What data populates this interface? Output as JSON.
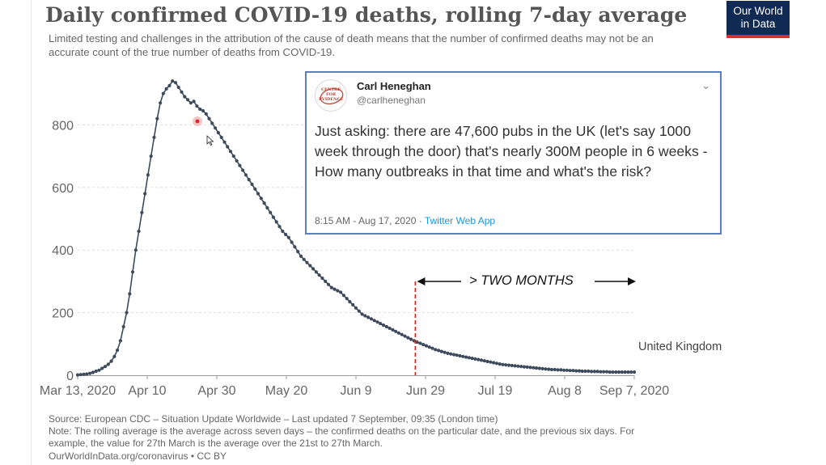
{
  "title": "Daily confirmed COVID-19 deaths, rolling 7-day average",
  "subtitle": "Limited testing and challenges in the attribution of the cause of death means that the number of confirmed deaths may not be an accurate count of the true number of deaths from COVID-19.",
  "logo": {
    "line1": "Our World",
    "line2": "in Data",
    "bg_color": "#0f2b54",
    "accent_color": "#d2312b"
  },
  "tweet": {
    "name": "Carl Heneghan",
    "handle": "@carlheneghan",
    "avatar_text": "CENTRE FOR EVIDENCE",
    "text": "Just asking: there are 47,600 pubs in the UK (let's say 1000 week through the door) that's nearly 300M people in 6 weeks - How many outbreaks in that time and what's the risk?",
    "time": "8:15 AM - Aug 17, 2020",
    "separator": " · ",
    "app": "Twitter Web App",
    "chevron_icon": "chevron-down-icon"
  },
  "annotation": {
    "text": "> TWO MONTHS",
    "marker_date": "2020-06-29",
    "end_date": "2020-09-07",
    "color": "#e8261c"
  },
  "footer": {
    "source": "Source: European CDC – Situation Update Worldwide – Last updated 7 September, 09:35 (London time)",
    "note1": "Note: The rolling average is the average across seven days – the confirmed deaths on the particular date, and the previous six days. For",
    "note2": "example, the value for 27th March is the average over the 21st to 27th March.",
    "credit": "OurWorldInData.org/coronavirus • CC BY"
  },
  "chart_data": {
    "type": "line",
    "x_start": "2020-03-13",
    "x_end": "2020-09-07",
    "xticks": [
      "Mar 13, 2020",
      "Apr 10",
      "Apr 30",
      "May 20",
      "Jun 9",
      "Jun 29",
      "Jul 19",
      "Aug 8",
      "Sep 7, 2020"
    ],
    "ylim": [
      0,
      950
    ],
    "yticks": [
      0,
      200,
      400,
      600,
      800
    ],
    "grid": true,
    "series": [
      {
        "name": "United Kingdom",
        "color": "#3d4a5c",
        "values": [
          1,
          2,
          3,
          4,
          6,
          9,
          13,
          16,
          22,
          28,
          35,
          45,
          60,
          80,
          110,
          155,
          200,
          260,
          330,
          400,
          460,
          520,
          580,
          640,
          700,
          760,
          820,
          870,
          900,
          915,
          925,
          940,
          935,
          920,
          905,
          890,
          880,
          870,
          875,
          860,
          850,
          845,
          835,
          820,
          805,
          790,
          775,
          760,
          745,
          730,
          715,
          700,
          685,
          670,
          655,
          640,
          625,
          610,
          595,
          580,
          565,
          550,
          535,
          520,
          505,
          490,
          475,
          460,
          450,
          440,
          425,
          410,
          395,
          380,
          370,
          360,
          350,
          340,
          330,
          320,
          310,
          300,
          290,
          280,
          275,
          270,
          265,
          255,
          245,
          235,
          225,
          215,
          205,
          195,
          190,
          185,
          180,
          175,
          170,
          165,
          160,
          155,
          150,
          145,
          140,
          135,
          130,
          125,
          120,
          115,
          110,
          106,
          102,
          98,
          94,
          90,
          86,
          82,
          79,
          76,
          73,
          70,
          68,
          66,
          64,
          62,
          60,
          58,
          56,
          54,
          52,
          50,
          48,
          46,
          44,
          42,
          40,
          38,
          36,
          34,
          33,
          32,
          31,
          30,
          29,
          28,
          27,
          26,
          25,
          24,
          23,
          22,
          21,
          20,
          19,
          18,
          18,
          17,
          17,
          16,
          16,
          15,
          15,
          14,
          14,
          13,
          13,
          13,
          12,
          12,
          12,
          11,
          11,
          11,
          10,
          10,
          10,
          10,
          10,
          10,
          10,
          10,
          10
        ]
      }
    ]
  }
}
